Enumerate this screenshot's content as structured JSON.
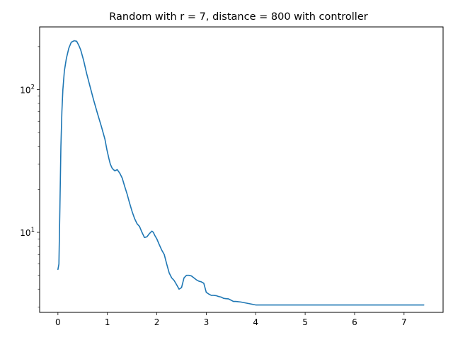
{
  "chart_data": {
    "type": "line",
    "title": "Random with r = 7, distance = 800 with controller",
    "xlabel": "",
    "ylabel": "",
    "y_scale": "log",
    "xlim": [
      -0.37,
      7.79
    ],
    "ylim": [
      2.75,
      275
    ],
    "x_ticks": [
      {
        "value": 0,
        "label": "0"
      },
      {
        "value": 1,
        "label": "1"
      },
      {
        "value": 2,
        "label": "2"
      },
      {
        "value": 3,
        "label": "3"
      },
      {
        "value": 4,
        "label": "4"
      },
      {
        "value": 5,
        "label": "5"
      },
      {
        "value": 6,
        "label": "6"
      },
      {
        "value": 7,
        "label": "7"
      }
    ],
    "y_major_ticks": [
      {
        "value": 10,
        "base": "10",
        "exp": "1"
      },
      {
        "value": 100,
        "base": "10",
        "exp": "2"
      }
    ],
    "y_minor_ticks": [
      3,
      4,
      5,
      6,
      7,
      8,
      9,
      20,
      30,
      40,
      50,
      60,
      70,
      80,
      90,
      200
    ],
    "grid": false,
    "color": "#1f77b4",
    "series": [
      {
        "x": [
          0.0,
          0.02,
          0.04,
          0.06,
          0.08,
          0.1,
          0.13,
          0.17,
          0.22,
          0.27,
          0.33,
          0.38,
          0.42,
          0.46,
          0.52,
          0.58,
          0.65,
          0.72,
          0.8,
          0.88,
          0.95,
          0.99,
          1.03,
          1.06,
          1.1,
          1.15,
          1.2,
          1.25,
          1.3,
          1.35,
          1.4,
          1.45,
          1.5,
          1.55,
          1.6,
          1.65,
          1.7,
          1.75,
          1.8,
          1.85,
          1.9,
          1.93,
          1.96,
          2.0,
          2.05,
          2.1,
          2.15,
          2.2,
          2.25,
          2.3,
          2.35,
          2.4,
          2.45,
          2.5,
          2.55,
          2.6,
          2.65,
          2.7,
          2.75,
          2.8,
          2.85,
          2.9,
          2.95,
          3.0,
          3.05,
          3.1,
          3.15,
          3.2,
          3.25,
          3.3,
          3.35,
          3.4,
          3.45,
          3.5,
          3.55,
          3.6,
          3.7,
          3.8,
          3.9,
          4.0,
          4.1,
          4.2,
          4.3,
          4.35,
          4.4,
          4.5,
          4.6,
          4.7,
          4.8,
          4.9,
          5.0,
          5.5,
          6.0,
          6.5,
          7.0,
          7.4
        ],
        "y": [
          5.5,
          6.0,
          15.0,
          40.0,
          70.0,
          100.0,
          135.0,
          165.0,
          195.0,
          215.0,
          220.0,
          218.0,
          205.0,
          190.0,
          160.0,
          130.0,
          105.0,
          85.0,
          68.0,
          55.0,
          45.0,
          38.0,
          33.0,
          30.0,
          28.0,
          27.0,
          27.5,
          26.0,
          24.0,
          21.0,
          18.5,
          16.0,
          14.0,
          12.5,
          11.5,
          11.0,
          10.0,
          9.2,
          9.3,
          9.8,
          10.2,
          10.0,
          9.5,
          9.0,
          8.2,
          7.5,
          7.0,
          6.0,
          5.2,
          4.8,
          4.6,
          4.3,
          4.0,
          4.1,
          4.8,
          5.0,
          5.0,
          4.95,
          4.8,
          4.65,
          4.55,
          4.5,
          4.4,
          3.8,
          3.7,
          3.62,
          3.62,
          3.6,
          3.55,
          3.52,
          3.45,
          3.43,
          3.42,
          3.35,
          3.28,
          3.28,
          3.25,
          3.2,
          3.15,
          3.1,
          3.1,
          3.1,
          3.1,
          3.1,
          3.1,
          3.1,
          3.1,
          3.1,
          3.1,
          3.1,
          3.1,
          3.1,
          3.1,
          3.1,
          3.1,
          3.1
        ]
      }
    ]
  }
}
